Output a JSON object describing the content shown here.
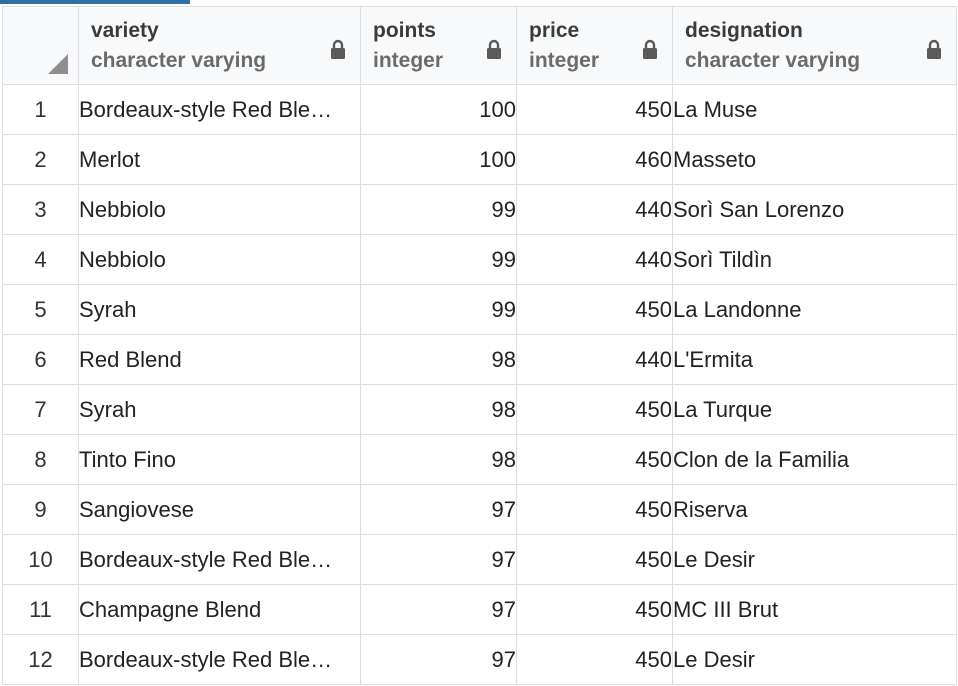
{
  "columns": [
    {
      "name": "variety",
      "type": "character varying",
      "locked": true
    },
    {
      "name": "points",
      "type": "integer",
      "locked": true
    },
    {
      "name": "price",
      "type": "integer",
      "locked": true
    },
    {
      "name": "designation",
      "type": "character varying",
      "locked": true
    }
  ],
  "rows": [
    {
      "num": "1",
      "variety": "Bordeaux-style Red Ble…",
      "points": "100",
      "price": "450",
      "designation": "La Muse"
    },
    {
      "num": "2",
      "variety": "Merlot",
      "points": "100",
      "price": "460",
      "designation": "Masseto"
    },
    {
      "num": "3",
      "variety": "Nebbiolo",
      "points": "99",
      "price": "440",
      "designation": "Sorì San Lorenzo"
    },
    {
      "num": "4",
      "variety": "Nebbiolo",
      "points": "99",
      "price": "440",
      "designation": "Sorì Tildìn"
    },
    {
      "num": "5",
      "variety": "Syrah",
      "points": "99",
      "price": "450",
      "designation": "La Landonne"
    },
    {
      "num": "6",
      "variety": "Red Blend",
      "points": "98",
      "price": "440",
      "designation": "L'Ermita"
    },
    {
      "num": "7",
      "variety": "Syrah",
      "points": "98",
      "price": "450",
      "designation": "La Turque"
    },
    {
      "num": "8",
      "variety": "Tinto Fino",
      "points": "98",
      "price": "450",
      "designation": "Clon de la Familia"
    },
    {
      "num": "9",
      "variety": "Sangiovese",
      "points": "97",
      "price": "450",
      "designation": "Riserva"
    },
    {
      "num": "10",
      "variety": "Bordeaux-style Red Ble…",
      "points": "97",
      "price": "450",
      "designation": "Le Desir"
    },
    {
      "num": "11",
      "variety": "Champagne Blend",
      "points": "97",
      "price": "450",
      "designation": "MC III Brut"
    },
    {
      "num": "12",
      "variety": "Bordeaux-style Red Ble…",
      "points": "97",
      "price": "450",
      "designation": "Le Desir"
    }
  ],
  "icons": {
    "lock": "lock-icon",
    "select_all": "select-all-triangle-icon"
  },
  "colors": {
    "header_bg": "#f8f9fa",
    "grid_line": "#dadde1",
    "tab_accent": "#2f6fa8",
    "lock": "#5a5a5a"
  }
}
